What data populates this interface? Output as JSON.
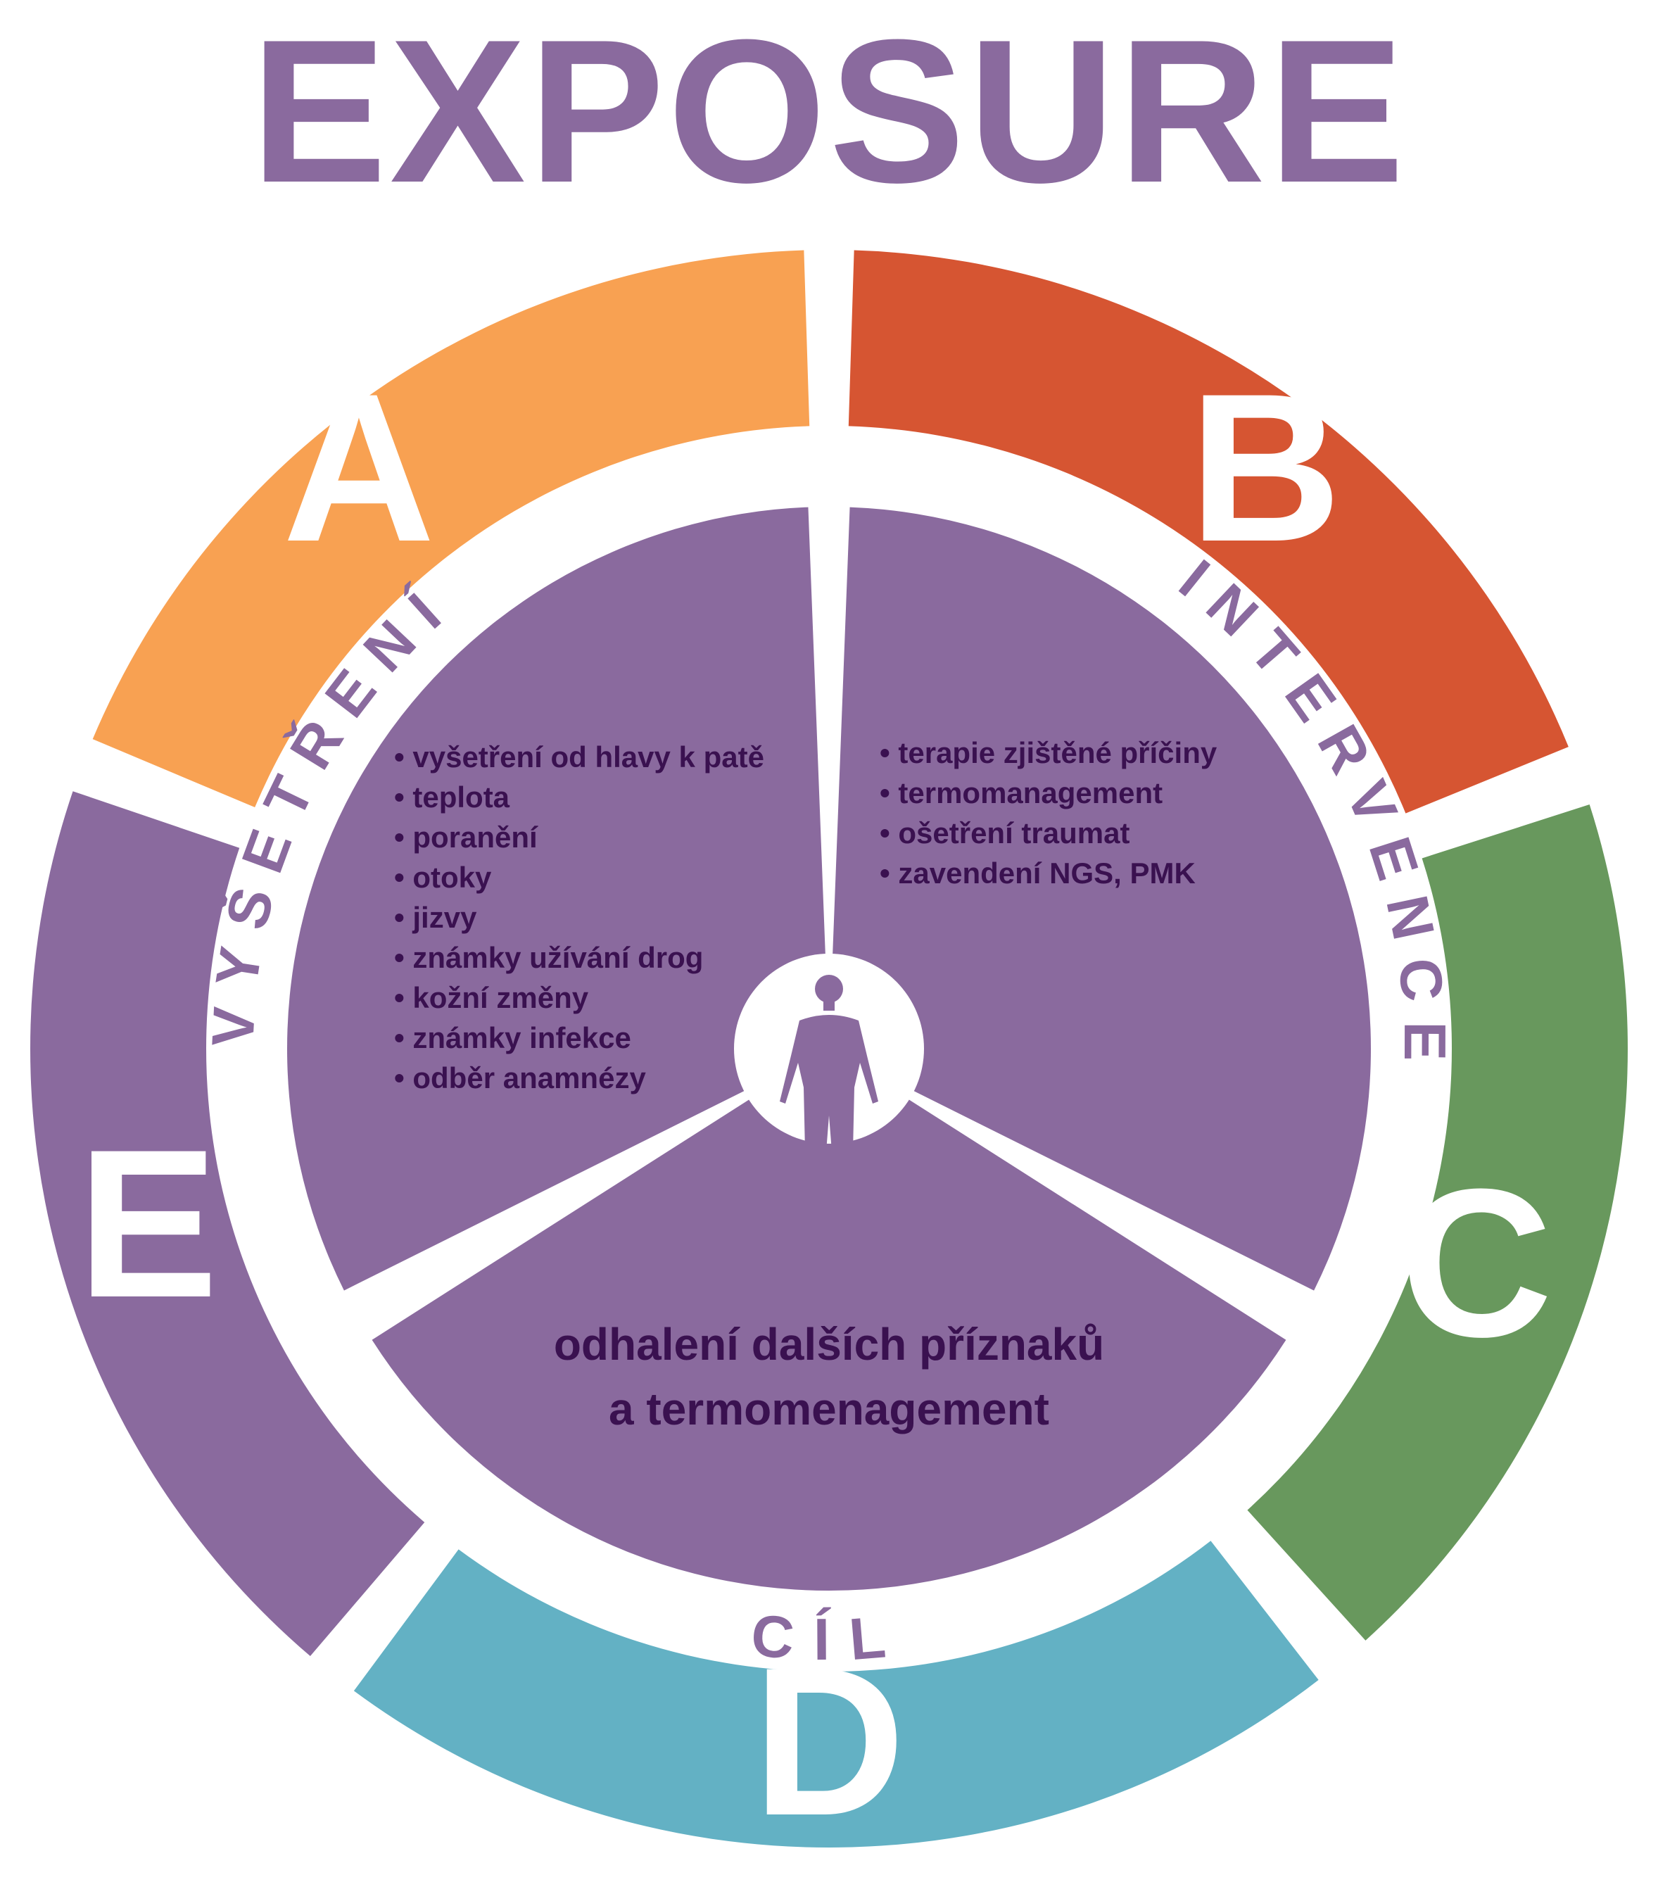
{
  "title": "EXPOSURE",
  "colors": {
    "title": "#8a6a9e",
    "segment_a": "#f8a152",
    "segment_b": "#d65532",
    "segment_c": "#68985d",
    "segment_d": "#63b1c4",
    "segment_e": "#8a6a9e",
    "inner": "#8a6a9e",
    "inner_text": "#3a1150",
    "ring_text": "#8a6a9e",
    "letter_text": "#ffffff"
  },
  "segments": [
    {
      "letter": "A",
      "color_key": "segment_a"
    },
    {
      "letter": "B",
      "color_key": "segment_b"
    },
    {
      "letter": "C",
      "color_key": "segment_c"
    },
    {
      "letter": "D",
      "color_key": "segment_d"
    },
    {
      "letter": "E",
      "color_key": "segment_e"
    }
  ],
  "ring_labels": {
    "left": "VYŠETŘENÍ",
    "right": "INTERVENCE",
    "bottom": "CÍL"
  },
  "center_icon": "human-figure-icon",
  "exam": {
    "items": [
      "vyšetření od hlavy k patě",
      "teplota",
      "poranění",
      "otoky",
      "jizvy",
      "známky užívání drog",
      "kožní změny",
      "známky infekce",
      "odběr anamnézy"
    ]
  },
  "intervention": {
    "items": [
      "terapie zjištěné příčiny",
      "termomanagement",
      "ošetření traumat",
      "zavendení NGS, PMK"
    ]
  },
  "goal": {
    "lines": [
      "odhalení dalších příznaků",
      "a termomenagement"
    ]
  }
}
